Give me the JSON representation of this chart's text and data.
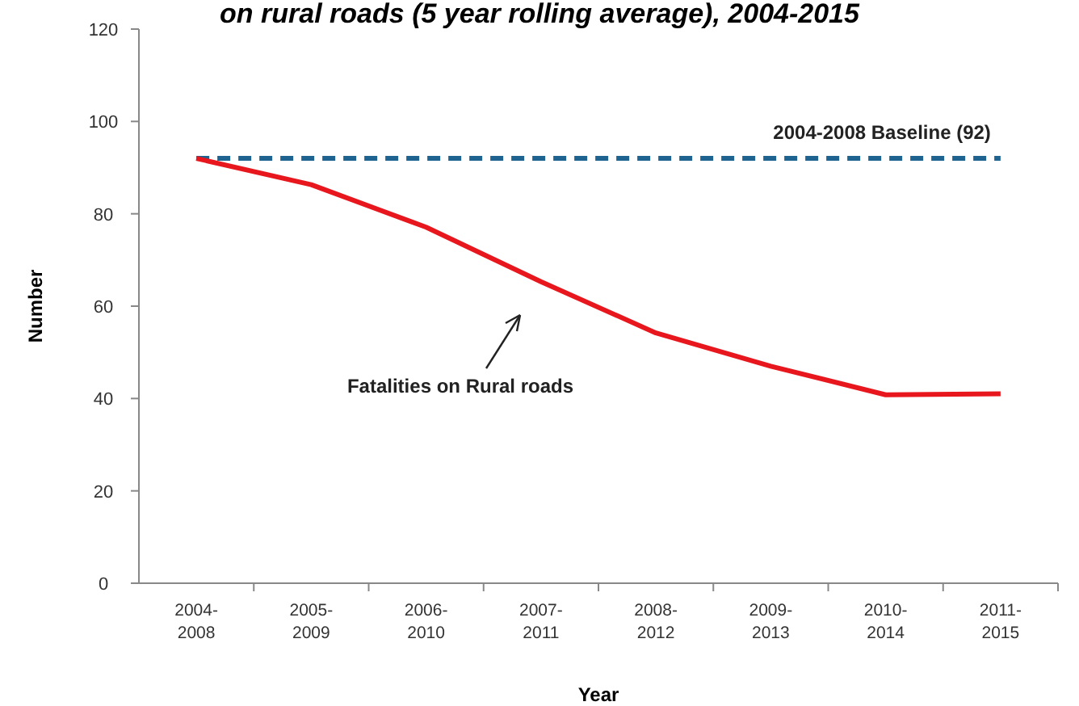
{
  "chart_data": {
    "type": "line",
    "title": "on rural roads (5 year rolling average), 2004-2015",
    "xlabel": "Year",
    "ylabel": "Number",
    "categories": [
      "2004-2008",
      "2005-2009",
      "2006-2010",
      "2007-2011",
      "2008-2012",
      "2009-2013",
      "2010-2014",
      "2011-2015"
    ],
    "series": [
      {
        "color": "#e8171e",
        "values": [
          92,
          86.3,
          77.1,
          65.3,
          54.2,
          47,
          40.8,
          41
        ]
      }
    ],
    "ylim": [
      0,
      120
    ],
    "yticks": [
      0,
      20,
      40,
      60,
      80,
      100,
      120
    ],
    "marker": "none",
    "line_style": "solid",
    "grid": false,
    "ref_lines": [
      {
        "axis": "y",
        "value": 92,
        "label": "2004-2008  Baseline (92)",
        "color": "#1f6391",
        "line_style": "dashed"
      }
    ],
    "annotations": [
      "Fatalities on Rural roads"
    ]
  }
}
